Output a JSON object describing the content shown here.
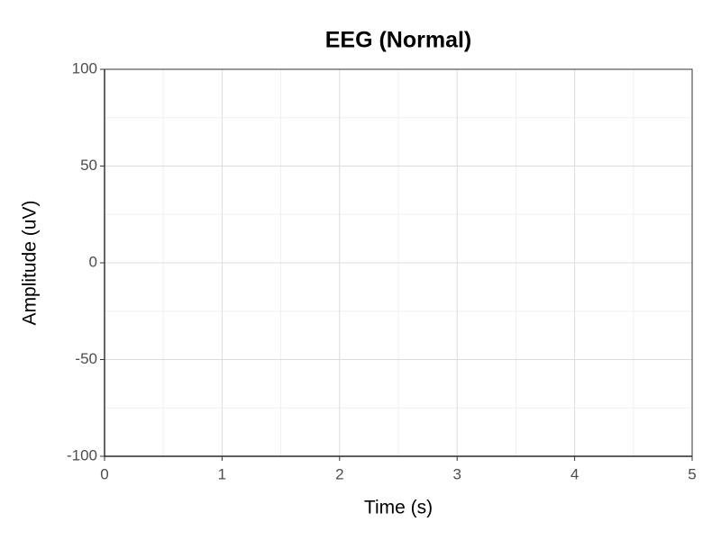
{
  "chart_data": {
    "type": "line",
    "title": "EEG (Normal)",
    "x_label": "Time (s)",
    "y_label": "Amplitude (uV)",
    "xlim": [
      0,
      5
    ],
    "xticks": [
      0,
      1,
      2,
      3,
      4,
      5
    ],
    "ylim": [
      -100,
      100
    ],
    "yticks": [
      -100,
      -50,
      0,
      50,
      100
    ],
    "grid": true
  }
}
